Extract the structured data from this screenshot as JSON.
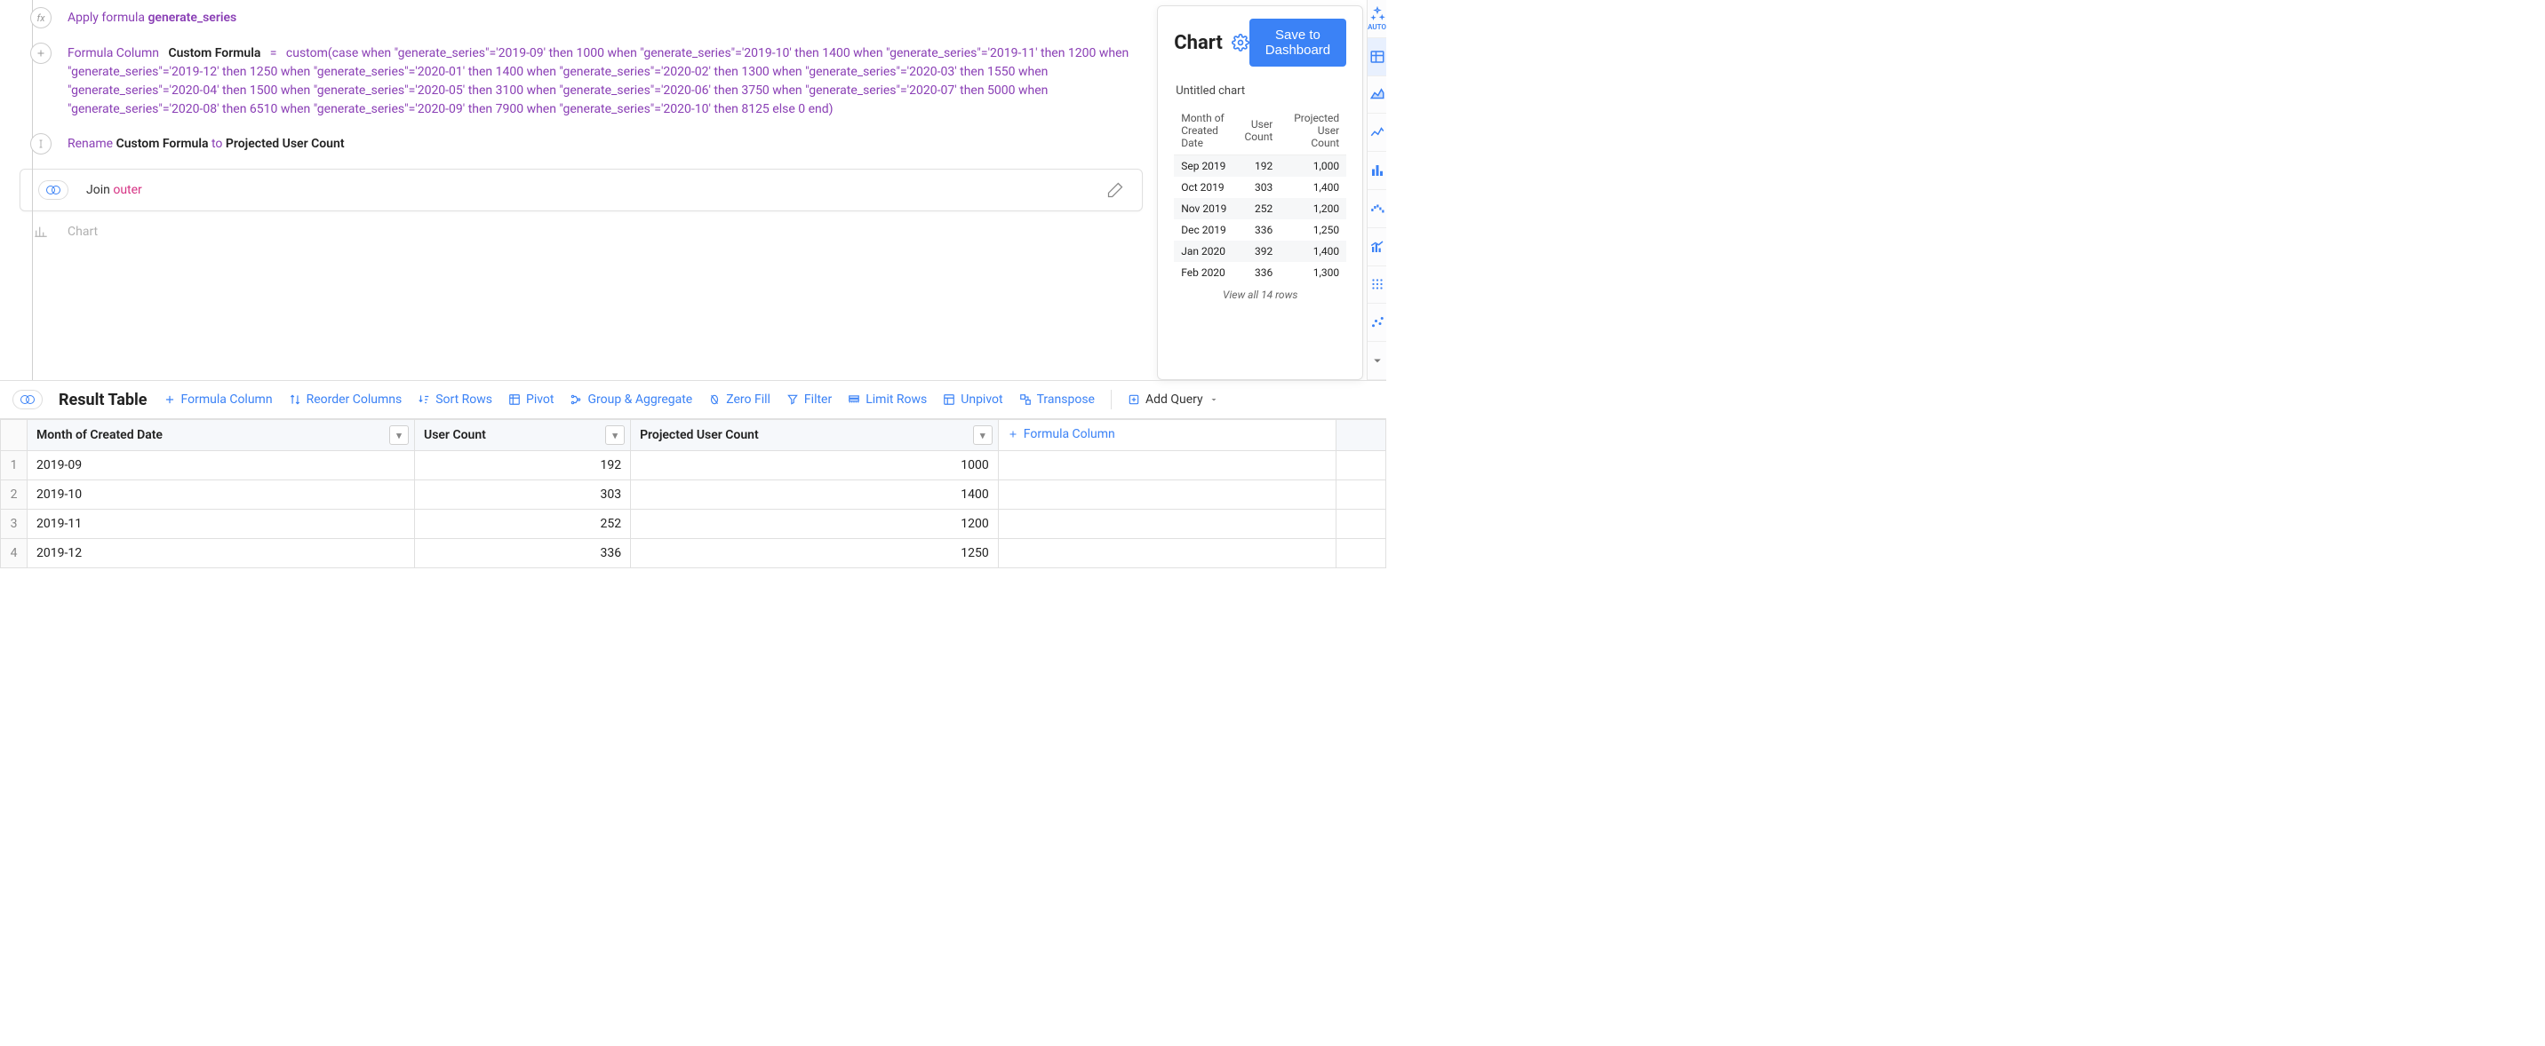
{
  "pipeline": {
    "apply_formula": {
      "prefix": "Apply formula",
      "name": "generate_series"
    },
    "formula_column": {
      "label": "Formula Column",
      "custom_label": "Custom Formula",
      "equals": "=",
      "expression": "custom(case when \"generate_series\"='2019-09' then 1000 when \"generate_series\"='2019-10' then 1400 when \"generate_series\"='2019-11' then 1200 when \"generate_series\"='2019-12' then 1250 when \"generate_series\"='2020-01' then 1400 when \"generate_series\"='2020-02' then 1300 when \"generate_series\"='2020-03' then 1550 when \"generate_series\"='2020-04' then 1500 when \"generate_series\"='2020-05' then 3100 when \"generate_series\"='2020-06' then 3750 when \"generate_series\"='2020-07' then 5000 when \"generate_series\"='2020-08' then 6510 when \"generate_series\"='2020-09' then 7900 when \"generate_series\"='2020-10' then 8125 else 0 end)"
    },
    "rename": {
      "prefix": "Rename",
      "from": "Custom Formula",
      "connector": "to",
      "to": "Projected User Count"
    },
    "join": {
      "label": "Join",
      "type": "outer"
    },
    "chart_step": {
      "label": "Chart"
    }
  },
  "chart_panel": {
    "title": "Chart",
    "save_button": "Save to Dashboard",
    "subtitle": "Untitled chart",
    "columns": [
      "Month of Created Date",
      "User Count",
      "Projected User Count"
    ],
    "rows": [
      {
        "month": "Sep 2019",
        "user_count": "192",
        "projected": "1,000"
      },
      {
        "month": "Oct 2019",
        "user_count": "303",
        "projected": "1,400"
      },
      {
        "month": "Nov 2019",
        "user_count": "252",
        "projected": "1,200"
      },
      {
        "month": "Dec 2019",
        "user_count": "336",
        "projected": "1,250"
      },
      {
        "month": "Jan 2020",
        "user_count": "392",
        "projected": "1,400"
      },
      {
        "month": "Feb 2020",
        "user_count": "336",
        "projected": "1,300"
      }
    ],
    "view_all": "View all 14 rows"
  },
  "right_rail": {
    "auto_label": "AUTO",
    "icons": [
      "table",
      "area",
      "line",
      "bar",
      "waterfall",
      "combo",
      "hbar",
      "scatter",
      "bubble",
      "more"
    ]
  },
  "result_toolbar": {
    "title": "Result Table",
    "links": {
      "formula_column": "Formula Column",
      "reorder_columns": "Reorder Columns",
      "sort_rows": "Sort Rows",
      "pivot": "Pivot",
      "group_aggregate": "Group & Aggregate",
      "zero_fill": "Zero Fill",
      "filter": "Filter",
      "limit_rows": "Limit Rows",
      "unpivot": "Unpivot",
      "transpose": "Transpose"
    },
    "add_query": "Add Query"
  },
  "result_table": {
    "columns": [
      "Month of Created Date",
      "User Count",
      "Projected User Count"
    ],
    "formula_column_link": "Formula Column",
    "rows": [
      {
        "n": "1",
        "month": "2019-09",
        "user_count": "192",
        "projected": "1000"
      },
      {
        "n": "2",
        "month": "2019-10",
        "user_count": "303",
        "projected": "1400"
      },
      {
        "n": "3",
        "month": "2019-11",
        "user_count": "252",
        "projected": "1200"
      },
      {
        "n": "4",
        "month": "2019-12",
        "user_count": "336",
        "projected": "1250"
      }
    ]
  },
  "colors": {
    "accent": "#3b82f6",
    "purple": "#8a3fb5",
    "pink": "#d63384",
    "border": "#e0e0e0",
    "header_bg": "#f6f8fb"
  }
}
